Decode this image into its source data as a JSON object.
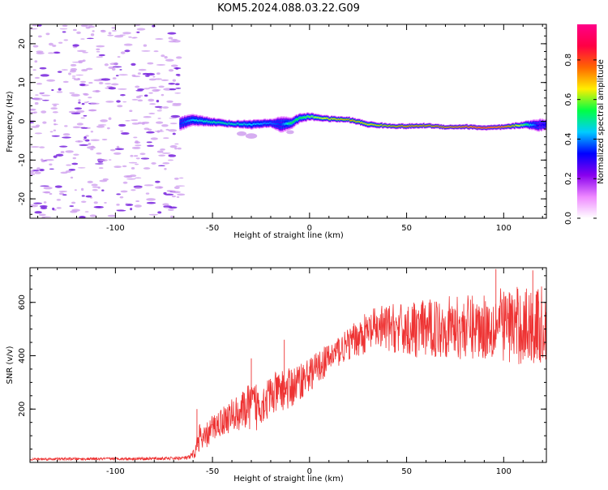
{
  "title": "KOM5.2024.088.03.22.G09",
  "colors": {
    "snr_line": "#ee3333",
    "frame": "#000000",
    "background": "#ffffff",
    "noise_speckle": "#cc99ee",
    "noise_speckle_dark": "#7722dd"
  },
  "chart_data": [
    {
      "type": "heatmap",
      "xlabel": "Height of straight line (km)",
      "ylabel": "Frequency (Hz)",
      "xlim": [
        -144,
        122
      ],
      "ylim": [
        -25,
        25
      ],
      "x_ticks": [
        {
          "value": -100,
          "label": "-100"
        },
        {
          "value": -50,
          "label": "-50"
        },
        {
          "value": 0,
          "label": "0"
        },
        {
          "value": 50,
          "label": "50"
        },
        {
          "value": 100,
          "label": "100"
        }
      ],
      "y_ticks": [
        {
          "value": 20,
          "label": "20"
        },
        {
          "value": 10,
          "label": "10"
        },
        {
          "value": 0,
          "label": "0"
        },
        {
          "value": -10,
          "label": "-10"
        },
        {
          "value": -20,
          "label": "-20"
        }
      ],
      "noise_region_x": [
        -144,
        -66
      ],
      "signal_start_x": -67,
      "ridge": {
        "x": [
          -67,
          -60,
          -50,
          -40,
          -30,
          -20,
          -15,
          -10,
          -5,
          0,
          10,
          20,
          30,
          40,
          50,
          60,
          70,
          80,
          90,
          100,
          110,
          118,
          122
        ],
        "freq": [
          -0.5,
          0.3,
          -0.2,
          -0.7,
          -0.8,
          -0.5,
          -0.8,
          -0.5,
          0.9,
          1.2,
          0.6,
          0.4,
          -0.8,
          -1.2,
          -1.3,
          -1.1,
          -1.5,
          -1.4,
          -1.7,
          -1.5,
          -0.9,
          -1.0,
          -0.8
        ],
        "width_hz": [
          3.5,
          3,
          2.2,
          1.8,
          2.4,
          2.2,
          4.2,
          3,
          2.4,
          2,
          1.6,
          1.5,
          1.7,
          1.3,
          1.4,
          1.3,
          1.2,
          1.3,
          1.3,
          1.4,
          1.8,
          3.2,
          2.5
        ],
        "amplitude": [
          0.35,
          0.45,
          0.5,
          0.5,
          0.45,
          0.4,
          0.35,
          0.55,
          0.55,
          0.6,
          0.7,
          0.75,
          0.7,
          0.75,
          0.8,
          0.78,
          0.82,
          0.85,
          0.9,
          0.85,
          0.6,
          0.3,
          0.35
        ]
      },
      "colorbar": {
        "label": "Normalized spectral amplitude",
        "range": [
          0,
          0.98
        ],
        "ticks": [
          {
            "value": 0.0,
            "label": "0.0"
          },
          {
            "value": 0.2,
            "label": "0.2"
          },
          {
            "value": 0.4,
            "label": "0.4"
          },
          {
            "value": 0.6,
            "label": "0.6"
          },
          {
            "value": 0.8,
            "label": "0.8"
          }
        ],
        "colormap": [
          "#ffffff",
          "#ee88ff",
          "#8800ee",
          "#0000ff",
          "#00ccff",
          "#00ff44",
          "#ffee00",
          "#ff6600",
          "#ff0044",
          "#ff0088"
        ]
      }
    },
    {
      "type": "line",
      "xlabel": "Height of straight line (km)",
      "ylabel": "SNR (v/v)",
      "xlim": [
        -144,
        122
      ],
      "ylim": [
        0,
        730
      ],
      "x_ticks": [
        {
          "value": -100,
          "label": "-100"
        },
        {
          "value": -50,
          "label": "-50"
        },
        {
          "value": 0,
          "label": "0"
        },
        {
          "value": 50,
          "label": "50"
        },
        {
          "value": 100,
          "label": "100"
        }
      ],
      "y_ticks": [
        {
          "value": 600,
          "label": "600"
        },
        {
          "value": 400,
          "label": "400"
        },
        {
          "value": 200,
          "label": "200"
        }
      ],
      "series": [
        {
          "x": [
            -144,
            -130,
            -120,
            -110,
            -100,
            -90,
            -80,
            -70,
            -62,
            -59,
            -57,
            -55,
            -52,
            -50,
            -45,
            -40,
            -35,
            -30,
            -28,
            -25,
            -20,
            -15,
            -10,
            -5,
            0,
            5,
            10,
            15,
            20,
            25,
            30,
            35,
            40,
            50,
            60,
            70,
            80,
            90,
            100,
            110,
            120,
            122
          ],
          "mean": [
            12,
            13,
            13,
            13,
            14,
            14,
            14,
            15,
            18,
            35,
            100,
            75,
            110,
            130,
            155,
            175,
            190,
            215,
            205,
            225,
            245,
            270,
            275,
            305,
            330,
            360,
            390,
            420,
            440,
            470,
            485,
            500,
            505,
            495,
            500,
            510,
            505,
            510,
            520,
            510,
            510,
            505
          ],
          "spread": [
            5,
            5,
            5,
            5,
            5,
            5,
            6,
            6,
            8,
            20,
            60,
            50,
            50,
            50,
            55,
            65,
            70,
            90,
            100,
            80,
            85,
            75,
            80,
            70,
            65,
            60,
            60,
            60,
            60,
            70,
            80,
            85,
            90,
            100,
            110,
            115,
            120,
            125,
            140,
            150,
            150,
            150
          ]
        }
      ],
      "spikes": [
        {
          "x": -58,
          "y": 200
        },
        {
          "x": -30,
          "y": 390
        },
        {
          "x": -13,
          "y": 460
        },
        {
          "x": 0,
          "y": 360
        },
        {
          "x": 96,
          "y": 725
        },
        {
          "x": 115,
          "y": 720
        }
      ]
    }
  ]
}
